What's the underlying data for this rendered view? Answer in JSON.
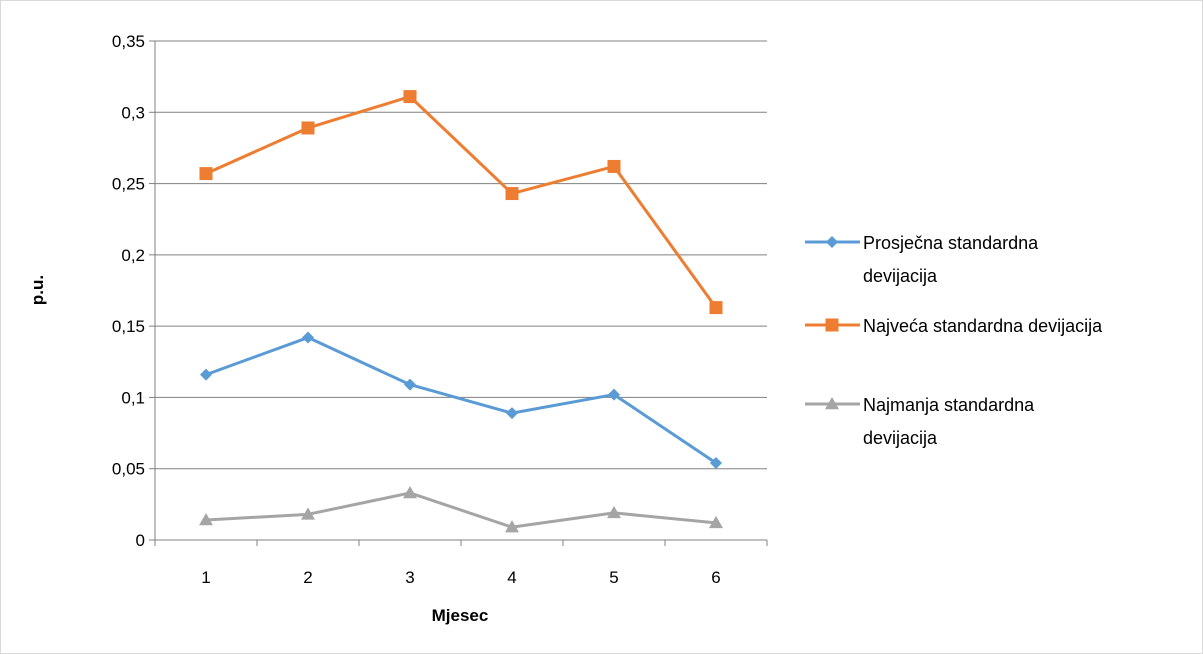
{
  "chart_data": {
    "type": "line",
    "title": "",
    "xlabel": "Mjesec",
    "ylabel": "p.u.",
    "categories": [
      "1",
      "2",
      "3",
      "4",
      "5",
      "6"
    ],
    "ylim": [
      0,
      0.35
    ],
    "yticks": [
      {
        "value": 0,
        "label": "0"
      },
      {
        "value": 0.05,
        "label": "0,05"
      },
      {
        "value": 0.1,
        "label": "0,1"
      },
      {
        "value": 0.15,
        "label": "0,15"
      },
      {
        "value": 0.2,
        "label": "0,2"
      },
      {
        "value": 0.25,
        "label": "0,25"
      },
      {
        "value": 0.3,
        "label": "0,3"
      },
      {
        "value": 0.35,
        "label": "0,35"
      }
    ],
    "grid": true,
    "legend_position": "right",
    "series": [
      {
        "name": "Prosječna standardna devijacija",
        "legend_lines": [
          "Prosječna standardna",
          "devijacija"
        ],
        "values": [
          0.116,
          0.142,
          0.109,
          0.089,
          0.102,
          0.054
        ],
        "color": "#5B9BD5",
        "marker": "diamond"
      },
      {
        "name": "Najveća standardna devijacija",
        "legend_lines": [
          "Najveća standardna devijacija"
        ],
        "values": [
          0.257,
          0.289,
          0.311,
          0.243,
          0.262,
          0.163
        ],
        "color": "#ED7D31",
        "marker": "square"
      },
      {
        "name": "Najmanja standardna devijacija",
        "legend_lines": [
          "Najmanja standardna",
          "devijacija"
        ],
        "values": [
          0.014,
          0.018,
          0.033,
          0.009,
          0.019,
          0.012
        ],
        "color": "#A5A5A5",
        "marker": "triangle"
      }
    ]
  },
  "style": {
    "frame_color": "#D9D9D9",
    "grid_color": "#808080",
    "axis_color": "#808080"
  }
}
